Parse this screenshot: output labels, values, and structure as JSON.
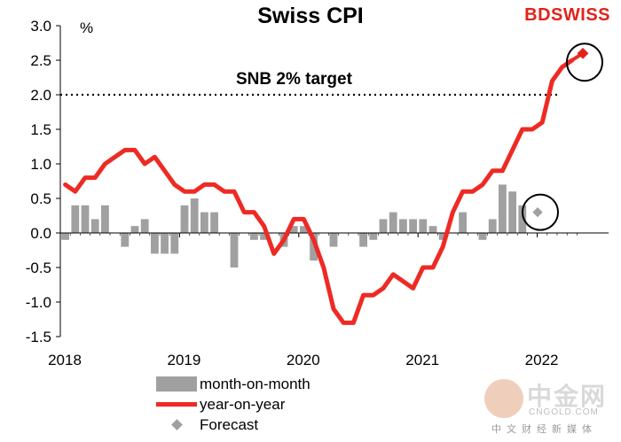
{
  "chart_data": {
    "type": "bar+line",
    "title": "Swiss CPI",
    "ylabel": "%",
    "ylim": [
      -1.5,
      3.0
    ],
    "yticks": [
      "3.0",
      "2.5",
      "2.0",
      "1.5",
      "1.0",
      "0.5",
      "0.0",
      "-0.5",
      "-1.0",
      "-1.5"
    ],
    "ytick_values": [
      3.0,
      2.5,
      2.0,
      1.5,
      1.0,
      0.5,
      0.0,
      -0.5,
      -1.0,
      -1.5
    ],
    "xticks": [
      "2018",
      "2019",
      "2020",
      "2021",
      "2022"
    ],
    "annotation": "SNB 2% target",
    "target_value": 2.0,
    "brand": "BDSWISS",
    "series": [
      {
        "name": "month-on-month",
        "kind": "bar",
        "color": "#a0a0a0",
        "values": [
          -0.1,
          0.4,
          0.4,
          0.2,
          0.4,
          0.0,
          -0.2,
          0.1,
          0.2,
          -0.3,
          -0.3,
          -0.3,
          0.4,
          0.5,
          0.3,
          0.3,
          0.0,
          -0.5,
          0.0,
          -0.1,
          -0.1,
          0.0,
          -0.2,
          0.1,
          0.1,
          -0.4,
          0.0,
          -0.2,
          0.0,
          0.0,
          -0.2,
          -0.1,
          0.2,
          0.3,
          0.2,
          0.2,
          0.2,
          0.1,
          -0.1,
          0.0,
          0.3,
          0.0,
          -0.1,
          0.2,
          0.7,
          0.6,
          0.4
        ]
      },
      {
        "name": "year-on-year",
        "kind": "line",
        "color": "#ee2a24",
        "values": [
          0.7,
          0.6,
          0.8,
          0.8,
          1.0,
          1.1,
          1.2,
          1.2,
          1.0,
          1.1,
          0.9,
          0.7,
          0.6,
          0.6,
          0.7,
          0.7,
          0.6,
          0.6,
          0.3,
          0.3,
          0.1,
          -0.3,
          -0.1,
          0.2,
          0.2,
          -0.1,
          -0.5,
          -1.1,
          -1.3,
          -1.3,
          -0.9,
          -0.9,
          -0.8,
          -0.6,
          -0.7,
          -0.8,
          -0.5,
          -0.5,
          -0.2,
          0.3,
          0.6,
          0.6,
          0.7,
          0.9,
          0.9,
          1.2,
          1.5,
          1.5,
          1.6,
          2.2,
          2.4,
          2.5
        ]
      },
      {
        "name": "Forecast",
        "kind": "forecast",
        "mom_value": 0.3,
        "yoy_value": 2.6
      }
    ]
  },
  "legend": {
    "items": [
      "month-on-month",
      "year-on-year",
      "Forecast"
    ]
  },
  "watermark": {
    "main": "中金网",
    "url": "CNGOLD.COM",
    "sub": "中文财经新媒体"
  }
}
